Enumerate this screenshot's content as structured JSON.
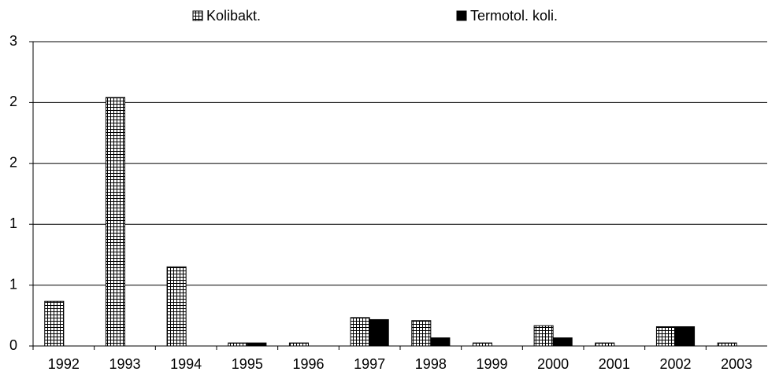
{
  "chart_data": {
    "type": "bar",
    "categories": [
      "1992",
      "1993",
      "1994",
      "1995",
      "1996",
      "1997",
      "1998",
      "1999",
      "2000",
      "2001",
      "2002",
      "2003"
    ],
    "series": [
      {
        "name": "Kolibakt.",
        "color": "#000000",
        "hatch": true,
        "values": [
          0.44,
          2.45,
          0.78,
          0.03,
          0.03,
          0.28,
          0.25,
          0.03,
          0.2,
          0.03,
          0.19,
          0.03
        ]
      },
      {
        "name": "Termotol. koli.",
        "color": "#000000",
        "hatch": false,
        "values": [
          0,
          0,
          0,
          0.03,
          0,
          0.26,
          0.08,
          0,
          0.08,
          0,
          0.19,
          0
        ]
      }
    ],
    "ylim": [
      0,
      3
    ],
    "yticks": [
      0,
      {
        "value": 0.6,
        "label": "1"
      },
      {
        "value": 1.2,
        "label": "1"
      },
      {
        "value": 1.8,
        "label": "2"
      },
      {
        "value": 2.4,
        "label": "2"
      },
      3
    ],
    "grid": true,
    "legend": "top"
  }
}
